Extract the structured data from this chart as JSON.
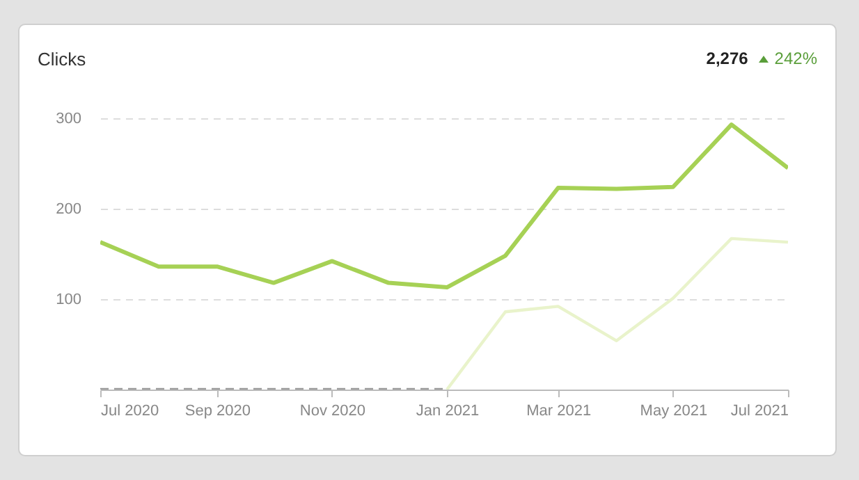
{
  "chart_data": {
    "type": "line",
    "title": "Clicks",
    "annotations": [
      "2,276",
      "242%"
    ],
    "x": [
      "2020-07",
      "2020-08",
      "2020-09",
      "2020-10",
      "2020-11",
      "2020-12",
      "2021-01",
      "2021-02",
      "2021-03",
      "2021-04",
      "2021-05",
      "2021-06",
      "2021-07"
    ],
    "series": [
      {
        "color": "#a6d155",
        "values": [
          163,
          136,
          136,
          118,
          142,
          118,
          113,
          148,
          223,
          222,
          224,
          293,
          245
        ]
      },
      {
        "color": "#e9f3cb",
        "values": [
          null,
          null,
          null,
          null,
          null,
          null,
          0,
          86,
          92,
          54,
          101,
          167,
          163
        ]
      },
      {
        "color": "#9a9a9a",
        "line_style": "dashed",
        "values": [
          0,
          0,
          0,
          0,
          0,
          0,
          0,
          null,
          null,
          null,
          null,
          null,
          null
        ]
      }
    ],
    "xlim": [
      "2020-07",
      "2021-07"
    ],
    "xticks": [
      {
        "value": "2020-07",
        "label": "Jul 2020"
      },
      {
        "value": "2020-09",
        "label": "Sep 2020"
      },
      {
        "value": "2020-11",
        "label": "Nov 2020"
      },
      {
        "value": "2021-01",
        "label": "Jan 2021"
      },
      {
        "value": "2021-03",
        "label": "Mar 2021"
      },
      {
        "value": "2021-05",
        "label": "May 2021"
      },
      {
        "value": "2021-07",
        "label": "Jul 2021"
      }
    ],
    "ylim": [
      0,
      300
    ],
    "yticks": [
      100,
      200,
      300
    ],
    "grid": "y",
    "marker": "none"
  }
}
